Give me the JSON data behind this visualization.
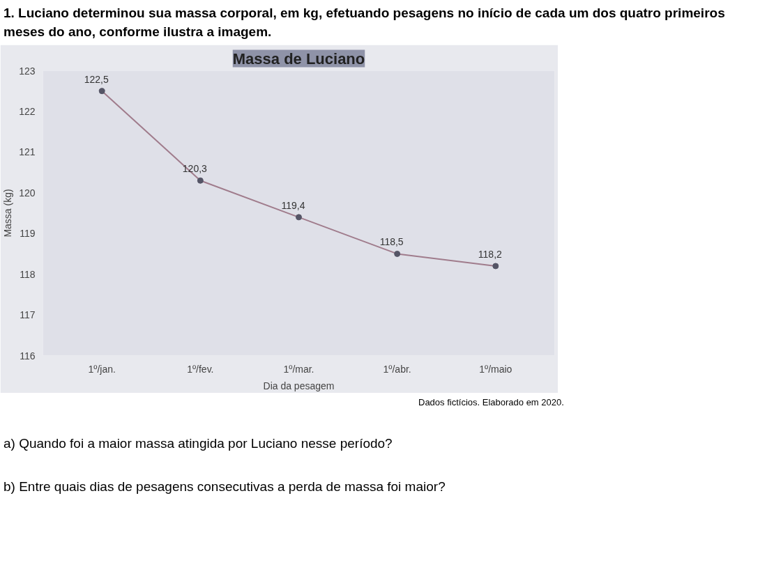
{
  "chart_data": {
    "type": "line",
    "title": "Massa de Luciano",
    "xlabel": "Dia da pesagem",
    "ylabel": "Massa (kg)",
    "categories": [
      "1º/jan.",
      "1º/fev.",
      "1º/mar.",
      "1º/abr.",
      "1º/maio"
    ],
    "series": [
      {
        "color": "#a07c8c",
        "values": [
          122.5,
          120.3,
          119.4,
          118.5,
          118.2
        ],
        "value_labels": [
          "122,5",
          "120,3",
          "119,4",
          "118,5",
          "118,2"
        ]
      }
    ],
    "ylim": [
      116,
      123
    ],
    "yticks": [
      116,
      117,
      118,
      119,
      120,
      121,
      122,
      123
    ],
    "grid": false,
    "marker": "circle",
    "line_style": "solid",
    "annotations": [
      "1. Luciano determinou sua massa corporal, em kg, efetuando pesagens no início de cada um dos quatro primeiros meses do ano, conforme ilustra a imagem.",
      "Dados fictícios. Elaborado em 2020.",
      "a) Quando foi a maior massa atingida por Luciano nesse período?",
      "b) Entre quais dias de pesagens consecutivas a perda de massa foi maior?"
    ]
  }
}
